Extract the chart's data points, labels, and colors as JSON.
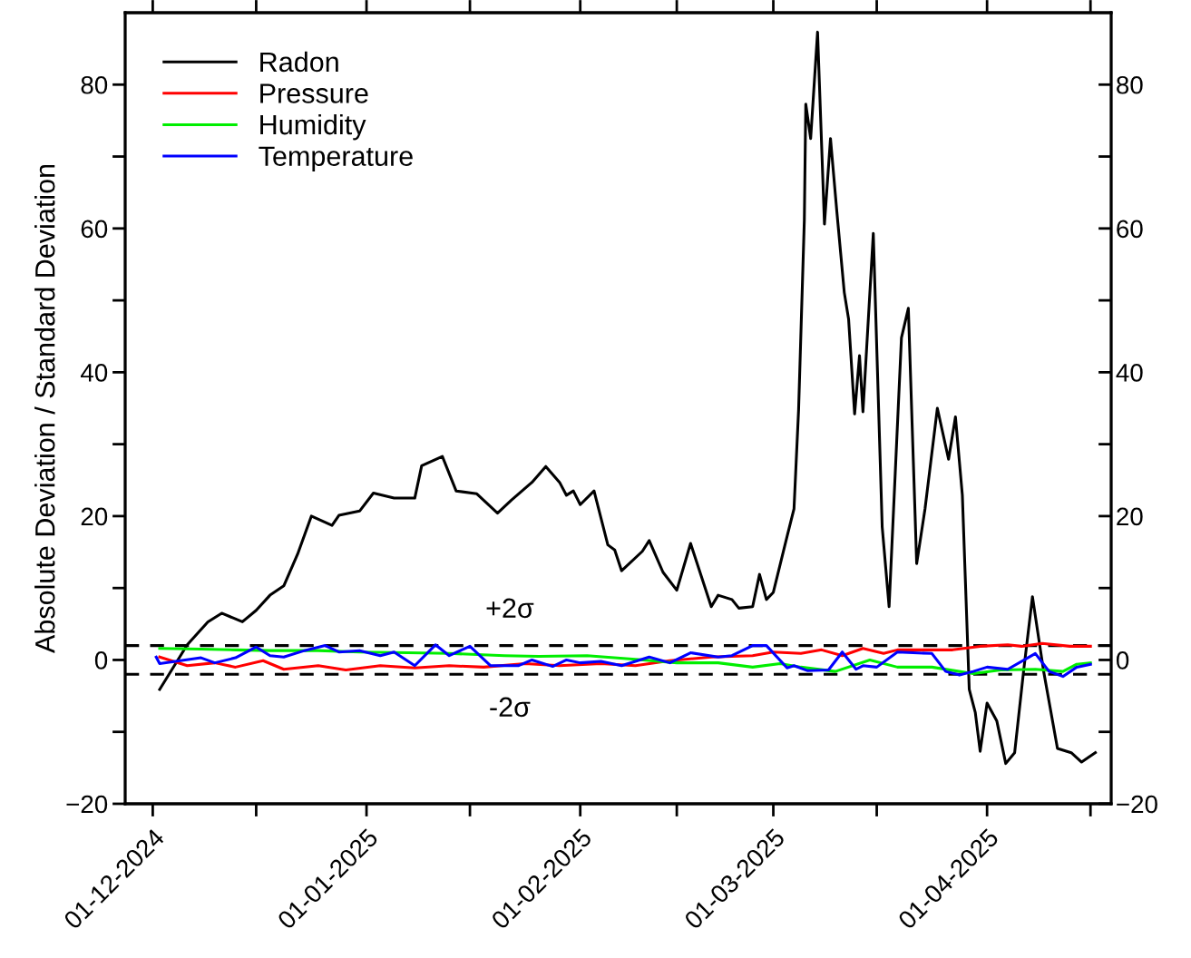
{
  "chart_data": {
    "type": "line",
    "ylabel": "Absolute Deviation / Standard Deviation",
    "xlim": [
      "2024-11-27",
      "2025-04-19"
    ],
    "xticks": [
      {
        "value": "2024-12-01",
        "label": "01-12-2024"
      },
      {
        "value": "2024-12-16",
        "label": null
      },
      {
        "value": "2025-01-01",
        "label": "01-01-2025"
      },
      {
        "value": "2025-01-16",
        "label": null
      },
      {
        "value": "2025-02-01",
        "label": "01-02-2025"
      },
      {
        "value": "2025-02-15",
        "label": null
      },
      {
        "value": "2025-03-01",
        "label": "01-03-2025"
      },
      {
        "value": "2025-03-16",
        "label": null
      },
      {
        "value": "2025-04-01",
        "label": "01-04-2025"
      },
      {
        "value": "2025-04-16",
        "label": null
      }
    ],
    "ylim": [
      -20,
      90
    ],
    "yticks": [
      {
        "value": -20,
        "label": "−20"
      },
      {
        "value": -10,
        "label": null
      },
      0,
      {
        "value": 10,
        "label": null
      },
      20,
      {
        "value": 30,
        "label": null
      },
      40,
      {
        "value": 50,
        "label": null
      },
      60,
      {
        "value": 70,
        "label": null
      },
      80
    ],
    "y2lim": [
      -20,
      90
    ],
    "y2ticks": [
      {
        "value": -20,
        "label": "−20"
      },
      {
        "value": -10,
        "label": null
      },
      0,
      {
        "value": 10,
        "label": null
      },
      20,
      {
        "value": 30,
        "label": null
      },
      40,
      {
        "value": 50,
        "label": null
      },
      60,
      {
        "value": 70,
        "label": null
      },
      80
    ],
    "grid": false,
    "legend": "top left",
    "line_style": "solid",
    "marker": "none",
    "ref_lines": [
      {
        "axis": "y",
        "value": 2,
        "label": "+2σ",
        "color": "#000000",
        "line_style": "dashed"
      },
      {
        "axis": "y",
        "value": -2,
        "label": "-2σ",
        "color": "#000000",
        "line_style": "dashed"
      }
    ],
    "series": [
      {
        "name": "Radon",
        "color": "#000000",
        "x": [
          "2024-12-02",
          "2024-12-06",
          "2024-12-09",
          "2024-12-11",
          "2024-12-14",
          "2024-12-16",
          "2024-12-18",
          "2024-12-20",
          "2024-12-22",
          "2024-12-24",
          "2024-12-27",
          "2024-12-28",
          "2024-12-31",
          "2025-01-02",
          "2025-01-05",
          "2025-01-08",
          "2025-01-09",
          "2025-01-12",
          "2025-01-14",
          "2025-01-17",
          "2025-01-20",
          "2025-01-22",
          "2025-01-25",
          "2025-01-27",
          "2025-01-29",
          "2025-01-30",
          "2025-01-31",
          "2025-02-01",
          "2025-02-03",
          "2025-02-05",
          "2025-02-06",
          "2025-02-07",
          "2025-02-10",
          "2025-02-11",
          "2025-02-13",
          "2025-02-15",
          "2025-02-17",
          "2025-02-20",
          "2025-02-21",
          "2025-02-23",
          "2025-02-24",
          "2025-02-26",
          "2025-02-27",
          "2025-02-28",
          "2025-03-01",
          "2025-03-03",
          "2025-03-04",
          "2025-03-04T16:00",
          "2025-03-05T12:00",
          "2025-03-05T17:00",
          "2025-03-06T10:00",
          "2025-03-07T10:00",
          "2025-03-08T10:00",
          "2025-03-09T07:00",
          "2025-03-10T05:00",
          "2025-03-11T07:00",
          "2025-03-11T22:00",
          "2025-03-12T19:00",
          "2025-03-13T12:00",
          "2025-03-14",
          "2025-03-15T12:00",
          "2025-03-16T19:00",
          "2025-03-17T19:00",
          "2025-03-19T14:00",
          "2025-03-20T14:00",
          "2025-03-21T19:00",
          "2025-03-23",
          "2025-03-24T19:00",
          "2025-03-26T10:00",
          "2025-03-27T10:00",
          "2025-03-28T10:00",
          "2025-03-29T10:00",
          "2025-03-30T07:00",
          "2025-03-31",
          "2025-04-01",
          "2025-04-02T10:00",
          "2025-04-03T17:00",
          "2025-04-05",
          "2025-04-06T07:00",
          "2025-04-07T14:00",
          "2025-04-09T05:00",
          "2025-04-11T05:00",
          "2025-04-13T05:00",
          "2025-04-14T17:00",
          "2025-04-16T17:00"
        ],
        "values": [
          -4.1,
          2.1,
          5.3,
          6.5,
          5.3,
          6.9,
          9.0,
          10.3,
          14.7,
          20.0,
          18.7,
          20.1,
          20.7,
          23.2,
          22.5,
          22.5,
          27.0,
          28.3,
          23.5,
          23.1,
          20.4,
          22.2,
          24.7,
          26.9,
          24.7,
          22.9,
          23.5,
          21.6,
          23.5,
          16.0,
          15.3,
          12.4,
          15.1,
          16.6,
          12.2,
          9.7,
          16.2,
          7.4,
          9.0,
          8.4,
          7.2,
          7.4,
          11.9,
          8.4,
          9.4,
          17.2,
          21.0,
          34.8,
          61.2,
          77.3,
          72.5,
          87.3,
          60.6,
          72.5,
          62.4,
          51.1,
          47.4,
          34.2,
          42.3,
          34.5,
          59.3,
          18.5,
          7.4,
          44.8,
          48.9,
          13.4,
          21.0,
          35.0,
          27.9,
          33.8,
          22.9,
          -4.1,
          -7.3,
          -12.7,
          -6.0,
          -8.5,
          -14.4,
          -12.9,
          -1.6,
          8.8,
          -1.6,
          -12.3,
          -12.9,
          -14.2,
          -12.9
        ]
      },
      {
        "name": "Pressure",
        "color": "#ff0000",
        "x": [
          "2024-12-02",
          "2024-12-06",
          "2024-12-10",
          "2024-12-13",
          "2024-12-17",
          "2024-12-20",
          "2024-12-25",
          "2024-12-29",
          "2025-01-03",
          "2025-01-08",
          "2025-01-13",
          "2025-01-18",
          "2025-01-24",
          "2025-01-29",
          "2025-02-04",
          "2025-02-09",
          "2025-02-14",
          "2025-02-20",
          "2025-02-26",
          "2025-03-01",
          "2025-03-05",
          "2025-03-08",
          "2025-03-11",
          "2025-03-14",
          "2025-03-17",
          "2025-03-19",
          "2025-03-23",
          "2025-03-27",
          "2025-03-31",
          "2025-04-04",
          "2025-04-06",
          "2025-04-09",
          "2025-04-13",
          "2025-04-16"
        ],
        "values": [
          0.4,
          -0.8,
          -0.4,
          -1.0,
          -0.1,
          -1.3,
          -0.8,
          -1.4,
          -0.8,
          -1.1,
          -0.8,
          -1.0,
          -0.5,
          -0.8,
          -0.5,
          -0.8,
          -0.1,
          0.4,
          0.6,
          1.1,
          0.9,
          1.4,
          0.6,
          1.6,
          0.9,
          1.4,
          1.4,
          1.4,
          1.9,
          2.1,
          1.9,
          2.3,
          1.9,
          1.9
        ]
      },
      {
        "name": "Humidity",
        "color": "#00ee00",
        "x": [
          "2024-12-02",
          "2024-12-08",
          "2024-12-13",
          "2024-12-18",
          "2024-12-25",
          "2024-12-31",
          "2025-01-07",
          "2025-01-13",
          "2025-01-21",
          "2025-01-26",
          "2025-02-02",
          "2025-02-09",
          "2025-02-15",
          "2025-02-21",
          "2025-02-26",
          "2025-03-02",
          "2025-03-05",
          "2025-03-10",
          "2025-03-15",
          "2025-03-19",
          "2025-03-24",
          "2025-03-30",
          "2025-04-03",
          "2025-04-08",
          "2025-04-12",
          "2025-04-14",
          "2025-04-16"
        ],
        "values": [
          1.6,
          1.5,
          1.4,
          1.3,
          1.3,
          1.1,
          1.0,
          0.9,
          0.6,
          0.5,
          0.6,
          0.1,
          -0.4,
          -0.4,
          -1.0,
          -0.5,
          -1.0,
          -1.6,
          0.0,
          -1.0,
          -1.0,
          -1.9,
          -1.4,
          -1.3,
          -1.6,
          -0.6,
          -0.4
        ]
      },
      {
        "name": "Temperature",
        "color": "#0000ff",
        "x": [
          "2024-12-01T12:00",
          "2024-12-02",
          "2024-12-05",
          "2024-12-08",
          "2024-12-10",
          "2024-12-13",
          "2024-12-16",
          "2024-12-18",
          "2024-12-20",
          "2024-12-23",
          "2024-12-26",
          "2024-12-28",
          "2024-12-31",
          "2025-01-03",
          "2025-01-05",
          "2025-01-08",
          "2025-01-11",
          "2025-01-13",
          "2025-01-16",
          "2025-01-19",
          "2025-01-23",
          "2025-01-25",
          "2025-01-28",
          "2025-01-30",
          "2025-02-01",
          "2025-02-04",
          "2025-02-07",
          "2025-02-11",
          "2025-02-14",
          "2025-02-17",
          "2025-02-21",
          "2025-02-23",
          "2025-02-26",
          "2025-02-28",
          "2025-03-03",
          "2025-03-04",
          "2025-03-06",
          "2025-03-09",
          "2025-03-11",
          "2025-03-13",
          "2025-03-14",
          "2025-03-16",
          "2025-03-19",
          "2025-03-24",
          "2025-03-26",
          "2025-03-28",
          "2025-03-30",
          "2025-04-01",
          "2025-04-04",
          "2025-04-08",
          "2025-04-10",
          "2025-04-12",
          "2025-04-14",
          "2025-04-16"
        ],
        "values": [
          0.4,
          -0.5,
          -0.1,
          0.3,
          -0.4,
          0.3,
          1.8,
          0.6,
          0.4,
          1.3,
          2.0,
          1.1,
          1.3,
          0.6,
          1.1,
          -0.8,
          2.1,
          0.6,
          1.9,
          -0.8,
          -0.8,
          0.0,
          -0.9,
          0.0,
          -0.4,
          -0.2,
          -0.8,
          0.4,
          -0.4,
          1.0,
          0.4,
          0.6,
          2.0,
          2.0,
          -1.1,
          -0.8,
          -1.5,
          -1.4,
          1.1,
          -1.3,
          -0.8,
          -1.0,
          1.1,
          0.9,
          -1.6,
          -2.1,
          -1.6,
          -1.0,
          -1.3,
          0.9,
          -1.6,
          -2.3,
          -1.0,
          -0.6
        ]
      }
    ]
  }
}
